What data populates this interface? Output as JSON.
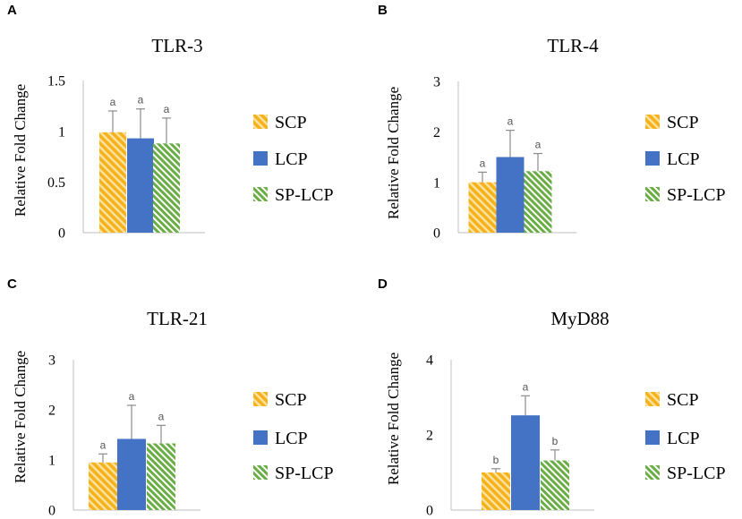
{
  "colors": {
    "scp": "#f6b21b",
    "lcp": "#4472c4",
    "splcp": "#6aad45",
    "axis": "#bfbfbf",
    "error": "#8c8c8c",
    "sig": "#595959"
  },
  "legend": [
    "SCP",
    "LCP",
    "SP-LCP"
  ],
  "chart_data": [
    {
      "panel": "A",
      "type": "bar",
      "title": "TLR-3",
      "ylabel": "Relative Fold Change",
      "ylim": [
        0,
        1.5
      ],
      "yticks": [
        "0",
        "0.5",
        "1",
        "1.5"
      ],
      "ytick_values": [
        0,
        0.5,
        1,
        1.5
      ],
      "categories": [
        "SCP",
        "LCP",
        "SP-LCP"
      ],
      "values": [
        0.99,
        0.93,
        0.88
      ],
      "errors": [
        0.21,
        0.29,
        0.25
      ],
      "significance": [
        "a",
        "a",
        "a"
      ]
    },
    {
      "panel": "B",
      "type": "bar",
      "title": "TLR-4",
      "ylabel": "Relative Fold Change",
      "ylim": [
        0,
        3
      ],
      "yticks": [
        "0",
        "1",
        "2",
        "3"
      ],
      "ytick_values": [
        0,
        1,
        2,
        3
      ],
      "categories": [
        "SCP",
        "LCP",
        "SP-LCP"
      ],
      "values": [
        1.0,
        1.5,
        1.22
      ],
      "errors": [
        0.2,
        0.53,
        0.35
      ],
      "significance": [
        "a",
        "a",
        "a"
      ]
    },
    {
      "panel": "C",
      "type": "bar",
      "title": "TLR-21",
      "ylabel": "Relative Fold Change",
      "ylim": [
        0,
        3
      ],
      "yticks": [
        "0",
        "1",
        "2",
        "3"
      ],
      "ytick_values": [
        0,
        1,
        2,
        3
      ],
      "categories": [
        "SCP",
        "LCP",
        "SP-LCP"
      ],
      "values": [
        0.95,
        1.42,
        1.33
      ],
      "errors": [
        0.17,
        0.67,
        0.36
      ],
      "significance": [
        "a",
        "a",
        "a"
      ]
    },
    {
      "panel": "D",
      "type": "bar",
      "title": "MyD88",
      "ylabel": "Relative Fold Change",
      "ylim": [
        0,
        4
      ],
      "yticks": [
        "0",
        "2",
        "4"
      ],
      "ytick_values": [
        0,
        2,
        4
      ],
      "categories": [
        "SCP",
        "LCP",
        "SP-LCP"
      ],
      "values": [
        1.0,
        2.52,
        1.32
      ],
      "errors": [
        0.1,
        0.52,
        0.28
      ],
      "significance": [
        "b",
        "a",
        "b"
      ]
    }
  ]
}
